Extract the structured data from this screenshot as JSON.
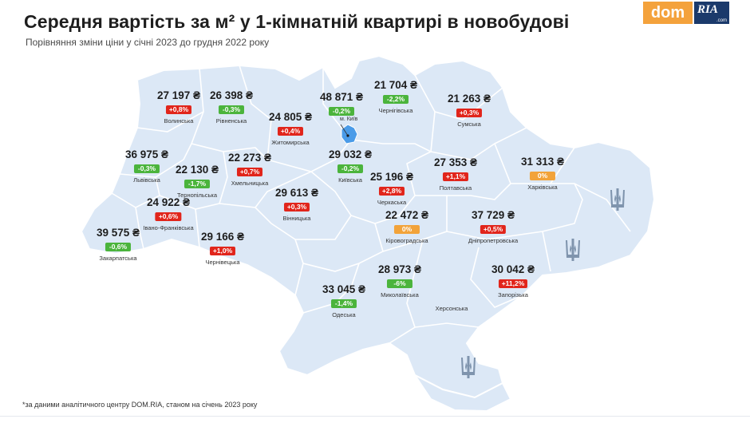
{
  "title": "Середня вартість за м² у 1-кімнатній квартирі в новобудові",
  "subtitle": "Порівняння зміни ціни у січні 2023 до грудня 2022 року",
  "logo": {
    "dom": "dom",
    "ria": "RIA",
    "ria_com": ".com"
  },
  "footnote": "*за даними аналітичного центру DOM.RIA, станом на січень 2023 року",
  "kyiv_city_label": "м. Київ",
  "colors": {
    "map_fill": "#dce8f6",
    "border": "#ffffff",
    "kyiv": "#4a9be8",
    "up": "#e1251b",
    "down": "#4bb43c",
    "zero": "#f2a33a"
  },
  "regions": [
    {
      "price": "27 197 ₴",
      "change": "+0,8%",
      "trend": "up",
      "name": "Волинська"
    },
    {
      "price": "26 398 ₴",
      "change": "-0,3%",
      "trend": "down",
      "name": "Рівненська"
    },
    {
      "price": "24 805 ₴",
      "change": "+0,4%",
      "trend": "up",
      "name": "Житомирська"
    },
    {
      "price": "48 871 ₴",
      "change": "-0,2%",
      "trend": "down",
      "name": ""
    },
    {
      "price": "21 704 ₴",
      "change": "-2,2%",
      "trend": "down",
      "name": "Чернігівська"
    },
    {
      "price": "21 263 ₴",
      "change": "+0,3%",
      "trend": "up",
      "name": "Сумська"
    },
    {
      "price": "36 975 ₴",
      "change": "-0,3%",
      "trend": "down",
      "name": "Львівська"
    },
    {
      "price": "22 130 ₴",
      "change": "-1,7%",
      "trend": "down",
      "name": "Тернопільська"
    },
    {
      "price": "22 273 ₴",
      "change": "+0,7%",
      "trend": "up",
      "name": "Хмельницька"
    },
    {
      "price": "29 032 ₴",
      "change": "-0,2%",
      "trend": "down",
      "name": "Київська"
    },
    {
      "price": "27 353 ₴",
      "change": "+1,1%",
      "trend": "up",
      "name": "Полтавська"
    },
    {
      "price": "31 313 ₴",
      "change": "0%",
      "trend": "zero",
      "name": "Харківська"
    },
    {
      "price": "24 922 ₴",
      "change": "+0,6%",
      "trend": "up",
      "name": "Івано-Франківська"
    },
    {
      "price": "29 613 ₴",
      "change": "+0,3%",
      "trend": "up",
      "name": "Вінницька"
    },
    {
      "price": "25 196 ₴",
      "change": "+2,8%",
      "trend": "up",
      "name": "Черкаська"
    },
    {
      "price": "39 575 ₴",
      "change": "-0,6%",
      "trend": "down",
      "name": "Закарпатська"
    },
    {
      "price": "29 166 ₴",
      "change": "+1,0%",
      "trend": "up",
      "name": "Чернівецька"
    },
    {
      "price": "22 472 ₴",
      "change": "0%",
      "trend": "zero",
      "name": "Кіровоградська"
    },
    {
      "price": "37 729 ₴",
      "change": "+0,5%",
      "trend": "up",
      "name": "Дніпропетровська"
    },
    {
      "price": "28 973 ₴",
      "change": "-6%",
      "trend": "down",
      "name": "Миколаївська"
    },
    {
      "price": "30 042 ₴",
      "change": "+11,2%",
      "trend": "up",
      "name": "Запорізька"
    },
    {
      "price": "33 045 ₴",
      "change": "-1,4%",
      "trend": "down",
      "name": "Одеська"
    },
    {
      "price": "",
      "change": "",
      "trend": "",
      "name": "Херсонська"
    }
  ],
  "trident_icons": [
    "trident-icon",
    "trident-icon",
    "trident-icon"
  ]
}
